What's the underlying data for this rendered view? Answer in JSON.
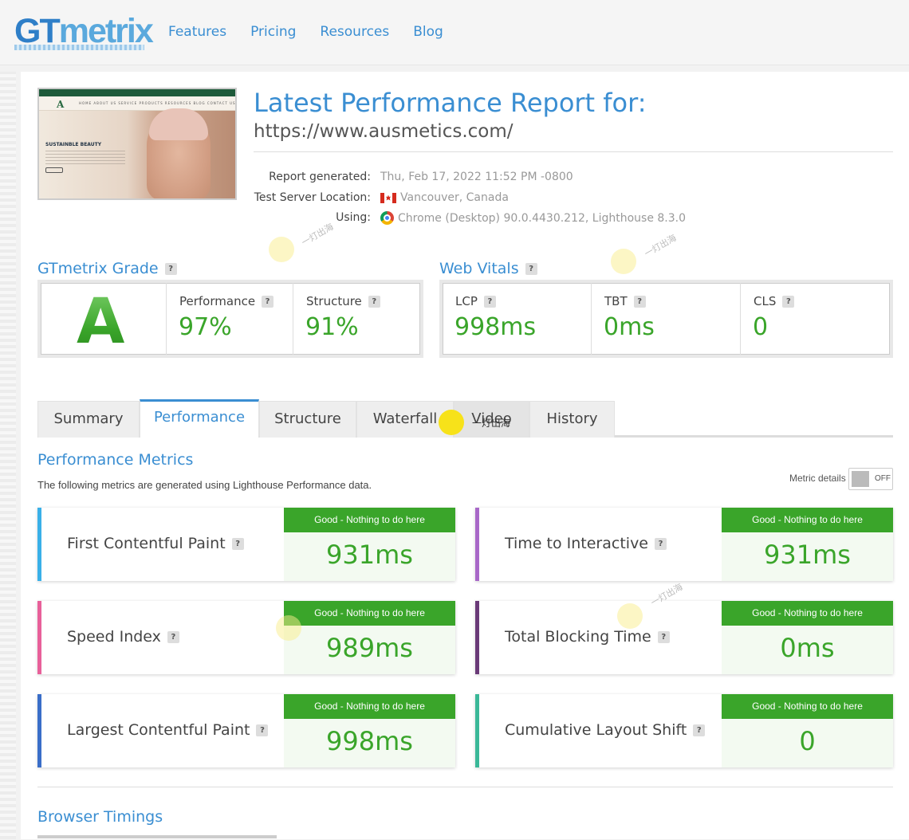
{
  "header": {
    "logo_gt": "GT",
    "logo_metrix": "metrix",
    "nav": [
      "Features",
      "Pricing",
      "Resources",
      "Blog"
    ]
  },
  "thumbnail": {
    "headline": "SUSTAINBLE BEAUTY",
    "logo_letter": "A",
    "menu": "HOME  ABOUT US  SERVICE  PRODUCTS  RESOURCES  BLOG  CONTACT US"
  },
  "report": {
    "title": "Latest Performance Report for:",
    "url": "https://www.ausmetics.com/",
    "generated_label": "Report generated:",
    "generated_value": "Thu, Feb 17, 2022 11:52 PM -0800",
    "location_label": "Test Server Location:",
    "location_value": "Vancouver, Canada",
    "using_label": "Using:",
    "using_value": "Chrome (Desktop) 90.0.4430.212, Lighthouse 8.3.0"
  },
  "grade": {
    "heading": "GTmetrix Grade",
    "letter": "A",
    "performance_label": "Performance",
    "performance_value": "97%",
    "structure_label": "Structure",
    "structure_value": "91%"
  },
  "vitals": {
    "heading": "Web Vitals",
    "lcp_label": "LCP",
    "lcp_value": "998ms",
    "tbt_label": "TBT",
    "tbt_value": "0ms",
    "cls_label": "CLS",
    "cls_value": "0"
  },
  "tabs": [
    {
      "label": "Summary",
      "active": false
    },
    {
      "label": "Performance",
      "active": true
    },
    {
      "label": "Structure",
      "active": false
    },
    {
      "label": "Waterfall",
      "active": false
    },
    {
      "label": "Video",
      "active": false
    },
    {
      "label": "History",
      "active": false
    }
  ],
  "perf_metrics": {
    "heading": "Performance Metrics",
    "description": "The following metrics are generated using Lighthouse Performance data.",
    "metric_details_label": "Metric details",
    "toggle_state": "OFF",
    "badge_text": "Good - Nothing to do here",
    "metrics": [
      {
        "label": "First Contentful Paint",
        "value": "931ms",
        "color": "#3ab0e8"
      },
      {
        "label": "Time to Interactive",
        "value": "931ms",
        "color": "#a868c8"
      },
      {
        "label": "Speed Index",
        "value": "989ms",
        "color": "#e8609a"
      },
      {
        "label": "Total Blocking Time",
        "value": "0ms",
        "color": "#6a3a78"
      },
      {
        "label": "Largest Contentful Paint",
        "value": "998ms",
        "color": "#3a6ec8"
      },
      {
        "label": "Cumulative Layout Shift",
        "value": "0",
        "color": "#3ab898"
      }
    ]
  },
  "browser_timings": {
    "heading": "Browser Timings"
  },
  "watermark": "一灯出海",
  "colors": {
    "accent_blue": "#3a8ed2",
    "good_green": "#3aa52a"
  }
}
